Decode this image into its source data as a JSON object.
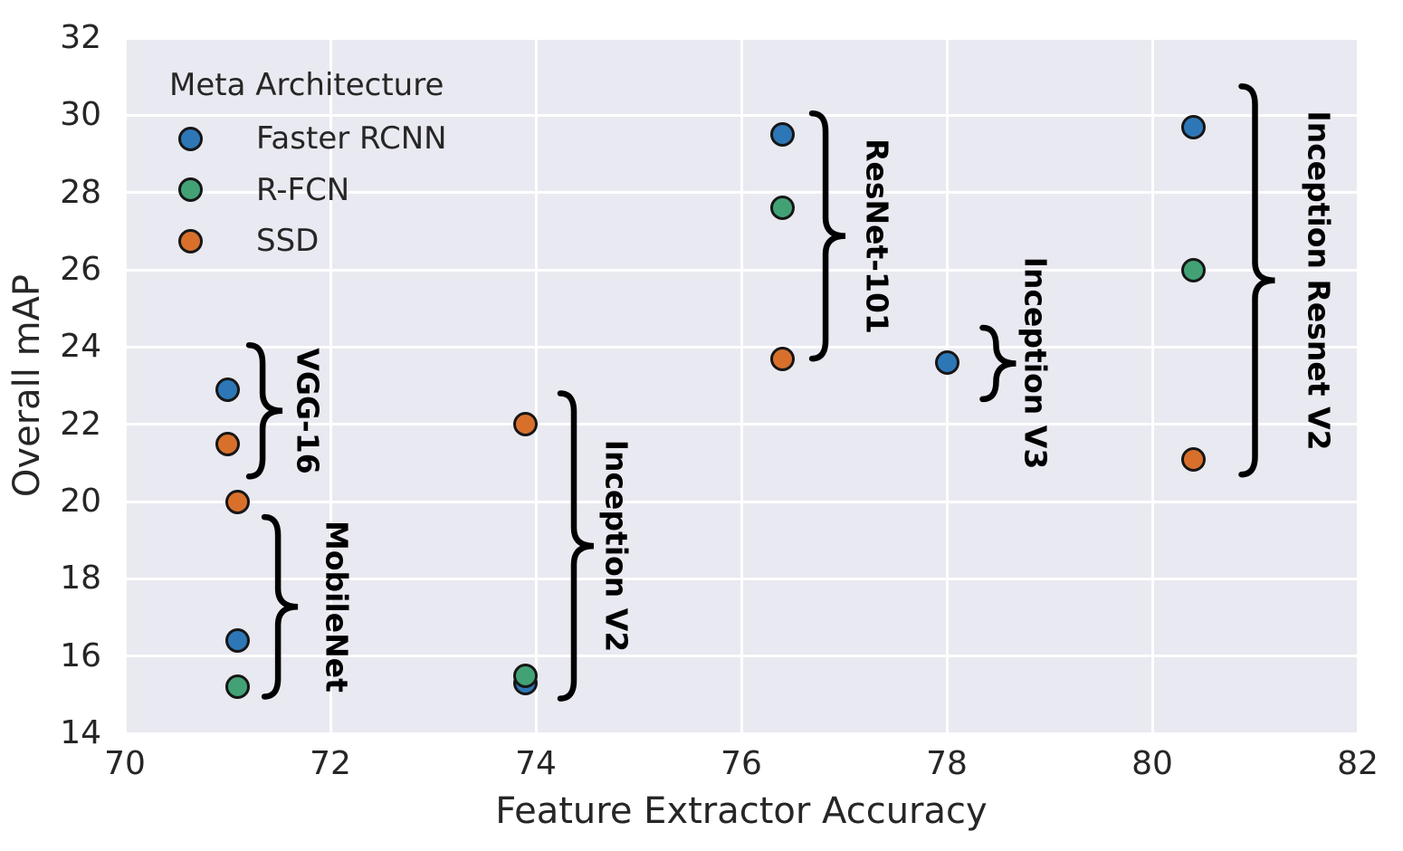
{
  "chart_data": {
    "type": "scatter",
    "title": "",
    "xlabel": "Feature Extractor Accuracy",
    "ylabel": "Overall mAP",
    "xlim": [
      70,
      82
    ],
    "ylim": [
      14,
      32
    ],
    "xticks": [
      70,
      72,
      74,
      76,
      78,
      80,
      82
    ],
    "yticks": [
      14,
      16,
      18,
      20,
      22,
      24,
      26,
      28,
      30,
      32
    ],
    "grid": true,
    "plot_background": "#e9e9f1",
    "gridline_color": "#ffffff",
    "marker_edge_color": "#161616",
    "legend": {
      "title": "Meta Architecture",
      "position": "upper left"
    },
    "series": [
      {
        "name": "Faster RCNN",
        "color": "#2e77b6",
        "points": [
          [
            71.0,
            22.9
          ],
          [
            71.1,
            16.4
          ],
          [
            73.9,
            15.3
          ],
          [
            76.4,
            29.5
          ],
          [
            78.0,
            23.6
          ],
          [
            80.4,
            29.7
          ]
        ]
      },
      {
        "name": "R-FCN",
        "color": "#42a276",
        "points": [
          [
            71.1,
            15.2
          ],
          [
            73.9,
            15.5
          ],
          [
            76.4,
            27.6
          ],
          [
            80.4,
            26.0
          ]
        ]
      },
      {
        "name": "SSD",
        "color": "#d8702c",
        "points": [
          [
            71.0,
            21.5
          ],
          [
            71.1,
            20.0
          ],
          [
            73.9,
            22.0
          ],
          [
            76.4,
            23.7
          ],
          [
            80.4,
            21.1
          ]
        ]
      }
    ],
    "annotations": [
      {
        "label": "VGG-16",
        "brace_x": 71.34,
        "y_top": 24.05,
        "y_bottom": 20.65,
        "label_x": 71.78
      },
      {
        "label": "MobileNet",
        "brace_x": 71.49,
        "y_top": 19.6,
        "y_bottom": 14.95,
        "label_x": 72.06
      },
      {
        "label": "Inception V2",
        "brace_x": 74.37,
        "y_top": 22.8,
        "y_bottom": 14.9,
        "label_x": 74.78
      },
      {
        "label": "ResNet-101",
        "brace_x": 76.82,
        "y_top": 30.05,
        "y_bottom": 23.7,
        "label_x": 77.32
      },
      {
        "label": "Inception V3",
        "brace_x": 78.48,
        "y_top": 24.5,
        "y_bottom": 22.65,
        "label_x": 78.86
      },
      {
        "label": "Inception Resnet V2",
        "brace_x": 81.0,
        "y_top": 30.75,
        "y_bottom": 20.7,
        "label_x": 81.62
      }
    ]
  }
}
